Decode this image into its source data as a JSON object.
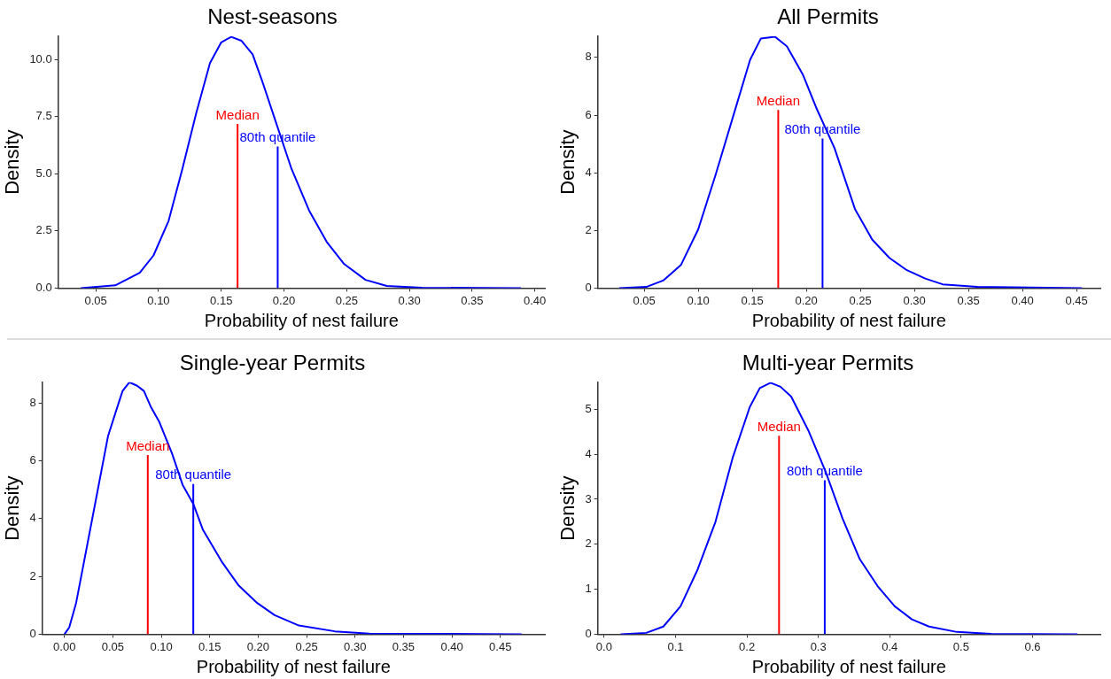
{
  "chart_data": [
    {
      "type": "line",
      "title": "Nest-seasons",
      "xlabel": "Probability of nest failure",
      "ylabel": "Density",
      "grid": false,
      "legend": false,
      "marker": "none",
      "xlim": [
        0.02,
        0.408
      ],
      "xticks": [
        {
          "value": 0.05,
          "label": "0.05"
        },
        {
          "value": 0.1,
          "label": "0.10"
        },
        {
          "value": 0.15,
          "label": "0.15"
        },
        {
          "value": 0.2,
          "label": "0.20"
        },
        {
          "value": 0.25,
          "label": "0.25"
        },
        {
          "value": 0.3,
          "label": "0.30"
        },
        {
          "value": 0.35,
          "label": "0.35"
        },
        {
          "value": 0.4,
          "label": "0.40"
        }
      ],
      "ylim": [
        0,
        11.03
      ],
      "yticks": [
        {
          "value": 0,
          "label": "0.0"
        },
        {
          "value": 2.5,
          "label": "2.5"
        },
        {
          "value": 5,
          "label": "5.0"
        },
        {
          "value": 7.5,
          "label": "7.5"
        },
        {
          "value": 10,
          "label": "10.0"
        }
      ],
      "series": [
        {
          "color": "#0000ff",
          "x": [
            0.038,
            0.0655,
            0.085,
            0.096,
            0.108,
            0.119,
            0.13,
            0.141,
            0.15,
            0.158,
            0.166,
            0.175,
            0.183,
            0.194,
            0.206,
            0.22,
            0.234,
            0.248,
            0.265,
            0.282,
            0.31,
            0.389
          ],
          "values": [
            0,
            0.12,
            0.67,
            1.43,
            2.94,
            5.22,
            7.65,
            9.85,
            10.76,
            11.0,
            10.83,
            10.23,
            9.0,
            7.19,
            5.22,
            3.4,
            2.03,
            1.05,
            0.36,
            0.09,
            0.015,
            0
          ]
        },
        {
          "color": "#ff0000",
          "x": [
            0.163,
            0.163
          ],
          "values": [
            0,
            7.19
          ]
        },
        {
          "color": "#0000ff",
          "x": [
            0.195,
            0.195
          ],
          "values": [
            0,
            6.2
          ]
        }
      ],
      "annotations": [
        {
          "text": "Median",
          "x": 0.163,
          "y": 7.19
        },
        {
          "text": "80th quantile",
          "x": 0.195,
          "y": 6.2
        }
      ]
    },
    {
      "type": "line",
      "title": "All Permits",
      "xlabel": "Probability of nest failure",
      "ylabel": "Density",
      "grid": false,
      "legend": false,
      "marker": "none",
      "xlim": [
        0.007,
        0.472
      ],
      "xticks": [
        {
          "value": 0.05,
          "label": "0.05"
        },
        {
          "value": 0.1,
          "label": "0.10"
        },
        {
          "value": 0.15,
          "label": "0.15"
        },
        {
          "value": 0.2,
          "label": "0.20"
        },
        {
          "value": 0.25,
          "label": "0.25"
        },
        {
          "value": 0.3,
          "label": "0.30"
        },
        {
          "value": 0.35,
          "label": "0.35"
        },
        {
          "value": 0.4,
          "label": "0.40"
        },
        {
          "value": 0.45,
          "label": "0.45"
        }
      ],
      "ylim": [
        0,
        8.74
      ],
      "yticks": [
        0,
        2,
        4,
        6,
        8
      ],
      "series": [
        {
          "color": "#0000ff",
          "x": [
            0.027,
            0.052,
            0.068,
            0.084,
            0.1,
            0.116,
            0.132,
            0.148,
            0.158,
            0.171,
            0.182,
            0.197,
            0.209,
            0.226,
            0.245,
            0.261,
            0.277,
            0.293,
            0.31,
            0.326,
            0.358,
            0.455
          ],
          "values": [
            0,
            0.04,
            0.27,
            0.8,
            2.04,
            3.92,
            5.92,
            7.92,
            8.66,
            8.72,
            8.39,
            7.39,
            6.27,
            4.86,
            2.74,
            1.68,
            1.04,
            0.62,
            0.33,
            0.13,
            0.04,
            0
          ]
        },
        {
          "color": "#ff0000",
          "x": [
            0.174,
            0.174
          ],
          "values": [
            0,
            6.18
          ]
        },
        {
          "color": "#0000ff",
          "x": [
            0.215,
            0.215
          ],
          "values": [
            0,
            5.19
          ]
        }
      ],
      "annotations": [
        {
          "text": "Median",
          "x": 0.174,
          "y": 6.18
        },
        {
          "text": "80th quantile",
          "x": 0.215,
          "y": 5.19
        }
      ]
    },
    {
      "type": "line",
      "title": "Single-year Permits",
      "xlabel": "Probability of nest failure",
      "ylabel": "Density",
      "grid": false,
      "legend": false,
      "marker": "none",
      "xlim": [
        -0.023,
        0.496
      ],
      "xticks": [
        {
          "value": 0,
          "label": "0.00"
        },
        {
          "value": 0.05,
          "label": "0.05"
        },
        {
          "value": 0.1,
          "label": "0.10"
        },
        {
          "value": 0.15,
          "label": "0.15"
        },
        {
          "value": 0.2,
          "label": "0.20"
        },
        {
          "value": 0.25,
          "label": "0.25"
        },
        {
          "value": 0.3,
          "label": "0.30"
        },
        {
          "value": 0.35,
          "label": "0.35"
        },
        {
          "value": 0.4,
          "label": "0.40"
        },
        {
          "value": 0.45,
          "label": "0.45"
        }
      ],
      "ylim": [
        0,
        8.72
      ],
      "yticks": [
        0,
        2,
        4,
        6,
        8
      ],
      "series": [
        {
          "color": "#0000ff",
          "x": [
            0,
            0.005,
            0.012,
            0.023,
            0.034,
            0.045,
            0.053,
            0.06,
            0.067,
            0.075,
            0.082,
            0.089,
            0.098,
            0.111,
            0.122,
            0.133,
            0.143,
            0.162,
            0.18,
            0.199,
            0.217,
            0.242,
            0.279,
            0.315,
            0.472
          ],
          "values": [
            0,
            0.24,
            1.08,
            3.0,
            4.93,
            6.86,
            7.7,
            8.42,
            8.72,
            8.6,
            8.42,
            7.88,
            7.34,
            6.26,
            5.17,
            4.51,
            3.61,
            2.53,
            1.68,
            1.08,
            0.66,
            0.3,
            0.1,
            0.02,
            0
          ]
        },
        {
          "color": "#ff0000",
          "x": [
            0.086,
            0.086
          ],
          "values": [
            0,
            6.2
          ]
        },
        {
          "color": "#0000ff",
          "x": [
            0.133,
            0.133
          ],
          "values": [
            0,
            5.2
          ]
        }
      ],
      "annotations": [
        {
          "text": "Median",
          "x": 0.086,
          "y": 6.2
        },
        {
          "text": "80th quantile",
          "x": 0.133,
          "y": 5.2
        }
      ]
    },
    {
      "type": "line",
      "title": "Multi-year Permits",
      "xlabel": "Probability of nest failure",
      "ylabel": "Density",
      "grid": false,
      "legend": false,
      "marker": "none",
      "xlim": [
        -0.009,
        0.695
      ],
      "xticks": [
        {
          "value": 0,
          "label": "0.0"
        },
        0.1,
        0.2,
        0.3,
        0.4,
        0.5,
        0.6
      ],
      "ylim": [
        0,
        5.6
      ],
      "yticks": [
        0,
        1,
        2,
        3,
        4,
        5
      ],
      "series": [
        {
          "color": "#0000ff",
          "x": [
            0.023,
            0.059,
            0.083,
            0.107,
            0.131,
            0.156,
            0.18,
            0.204,
            0.218,
            0.233,
            0.247,
            0.262,
            0.286,
            0.31,
            0.334,
            0.358,
            0.383,
            0.407,
            0.431,
            0.455,
            0.494,
            0.542,
            0.663
          ],
          "values": [
            0,
            0.03,
            0.17,
            0.62,
            1.44,
            2.5,
            3.92,
            5.05,
            5.47,
            5.59,
            5.5,
            5.28,
            4.53,
            3.62,
            2.57,
            1.67,
            1.07,
            0.62,
            0.33,
            0.17,
            0.05,
            0.01,
            0
          ]
        },
        {
          "color": "#ff0000",
          "x": [
            0.245,
            0.245
          ],
          "values": [
            0,
            4.41
          ]
        },
        {
          "color": "#0000ff",
          "x": [
            0.309,
            0.309
          ],
          "values": [
            0,
            3.42
          ]
        }
      ],
      "annotations": [
        {
          "text": "Median",
          "x": 0.245,
          "y": 4.41
        },
        {
          "text": "80th quantile",
          "x": 0.309,
          "y": 3.42
        }
      ]
    }
  ]
}
